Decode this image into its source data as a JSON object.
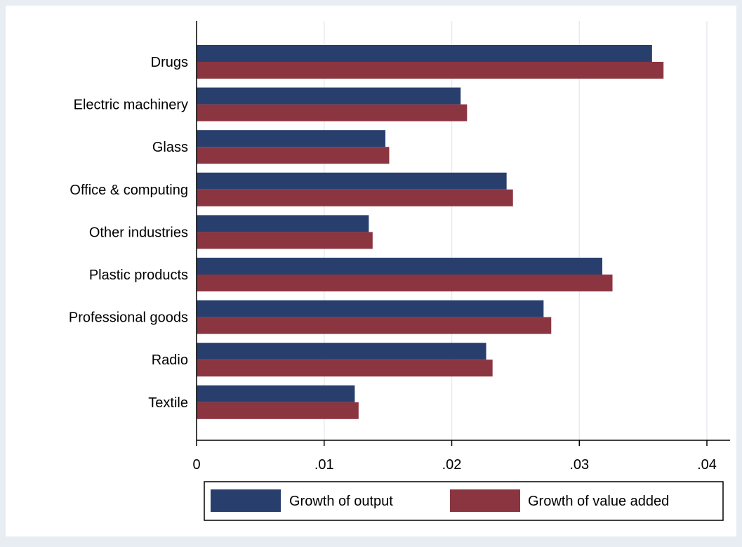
{
  "chart_data": {
    "type": "bar",
    "orientation": "horizontal",
    "categories": [
      "Drugs",
      "Electric machinery",
      "Glass",
      "Office & computing",
      "Other industries",
      "Plastic products",
      "Professional goods",
      "Radio",
      "Textile"
    ],
    "series": [
      {
        "name": "Growth of output",
        "color": "#283f6e",
        "values": [
          0.0357,
          0.0207,
          0.0148,
          0.0243,
          0.0135,
          0.0318,
          0.0272,
          0.0227,
          0.0124
        ]
      },
      {
        "name": "Growth of value added",
        "color": "#8b3540",
        "values": [
          0.0366,
          0.0212,
          0.0151,
          0.0248,
          0.0138,
          0.0326,
          0.0278,
          0.0232,
          0.0127
        ]
      }
    ],
    "xlim": [
      0,
      0.04
    ],
    "xticks": [
      0,
      0.01,
      0.02,
      0.03,
      0.04
    ],
    "xtick_labels": [
      "0",
      ".01",
      ".02",
      ".03",
      ".04"
    ],
    "title": "",
    "xlabel": "",
    "ylabel": "",
    "grid": true,
    "legend_position": "bottom",
    "background": "#e8ecf3",
    "plot_background": "#ffffff"
  }
}
